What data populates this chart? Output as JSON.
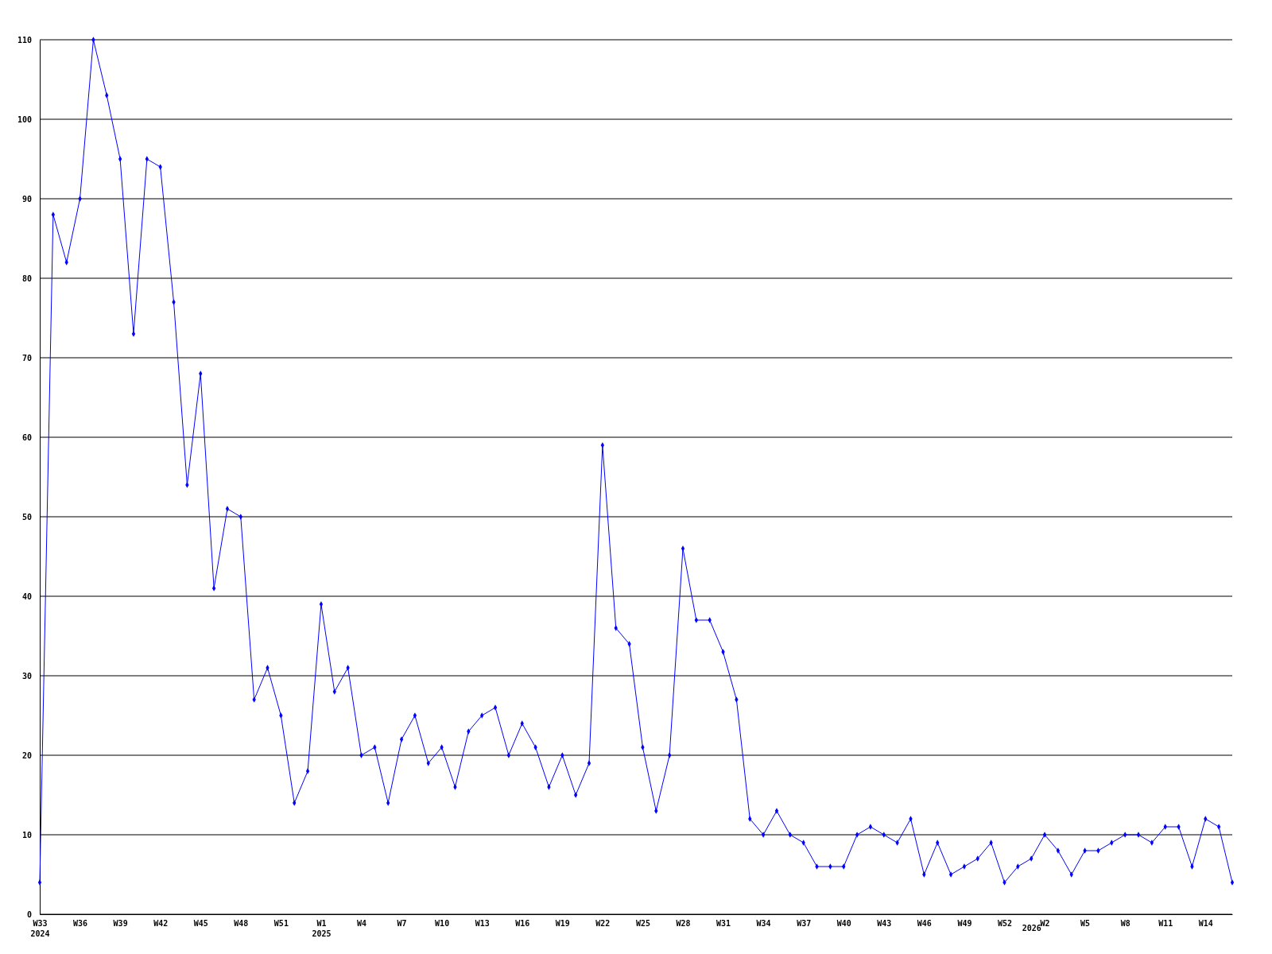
{
  "chart_data": {
    "type": "line",
    "categories": [
      "W33\n2024",
      null,
      null,
      "W36",
      null,
      null,
      "W39",
      null,
      null,
      "W42",
      null,
      null,
      "W45",
      null,
      null,
      "W48",
      null,
      null,
      "W51",
      null,
      null,
      "W1\n2025",
      null,
      null,
      "W4",
      null,
      null,
      "W7",
      null,
      null,
      "W10",
      null,
      null,
      "W13",
      null,
      null,
      "W16",
      null,
      null,
      "W19",
      null,
      null,
      "W22",
      null,
      null,
      "W25",
      null,
      null,
      "W28",
      null,
      null,
      "W31",
      null,
      null,
      "W34",
      null,
      null,
      "W37",
      null,
      null,
      "W40",
      null,
      null,
      "W43",
      null,
      null,
      "W46",
      null,
      null,
      "W49",
      null,
      null,
      "W52",
      null,
      "\n2026",
      "W2",
      null,
      null,
      "W5",
      null,
      null,
      "W8",
      null,
      null,
      "W11",
      null,
      null,
      "W14",
      null,
      null
    ],
    "series": [
      {
        "color": "#0000ff",
        "values": [
          4,
          88,
          82,
          90,
          110,
          103,
          95,
          73,
          95,
          94,
          77,
          54,
          68,
          41,
          51,
          50,
          27,
          31,
          25,
          14,
          18,
          39,
          28,
          31,
          20,
          21,
          14,
          22,
          25,
          19,
          21,
          16,
          23,
          25,
          26,
          20,
          24,
          21,
          16,
          20,
          15,
          19,
          59,
          36,
          34,
          21,
          13,
          20,
          46,
          37,
          37,
          33,
          27,
          12,
          10,
          13,
          10,
          9,
          6,
          6,
          6,
          10,
          11,
          10,
          9,
          12,
          5,
          9,
          5,
          6,
          7,
          9,
          4,
          6,
          7,
          10,
          8,
          5,
          8,
          8,
          9,
          10,
          10,
          9,
          11,
          11,
          6,
          12,
          11,
          4
        ]
      }
    ],
    "ylim": [
      0,
      110
    ],
    "yticks": [
      0,
      10,
      20,
      30,
      40,
      50,
      60,
      70,
      80,
      90,
      100,
      110
    ],
    "grid": "y",
    "marker": "diamond",
    "line_style": "solid"
  }
}
